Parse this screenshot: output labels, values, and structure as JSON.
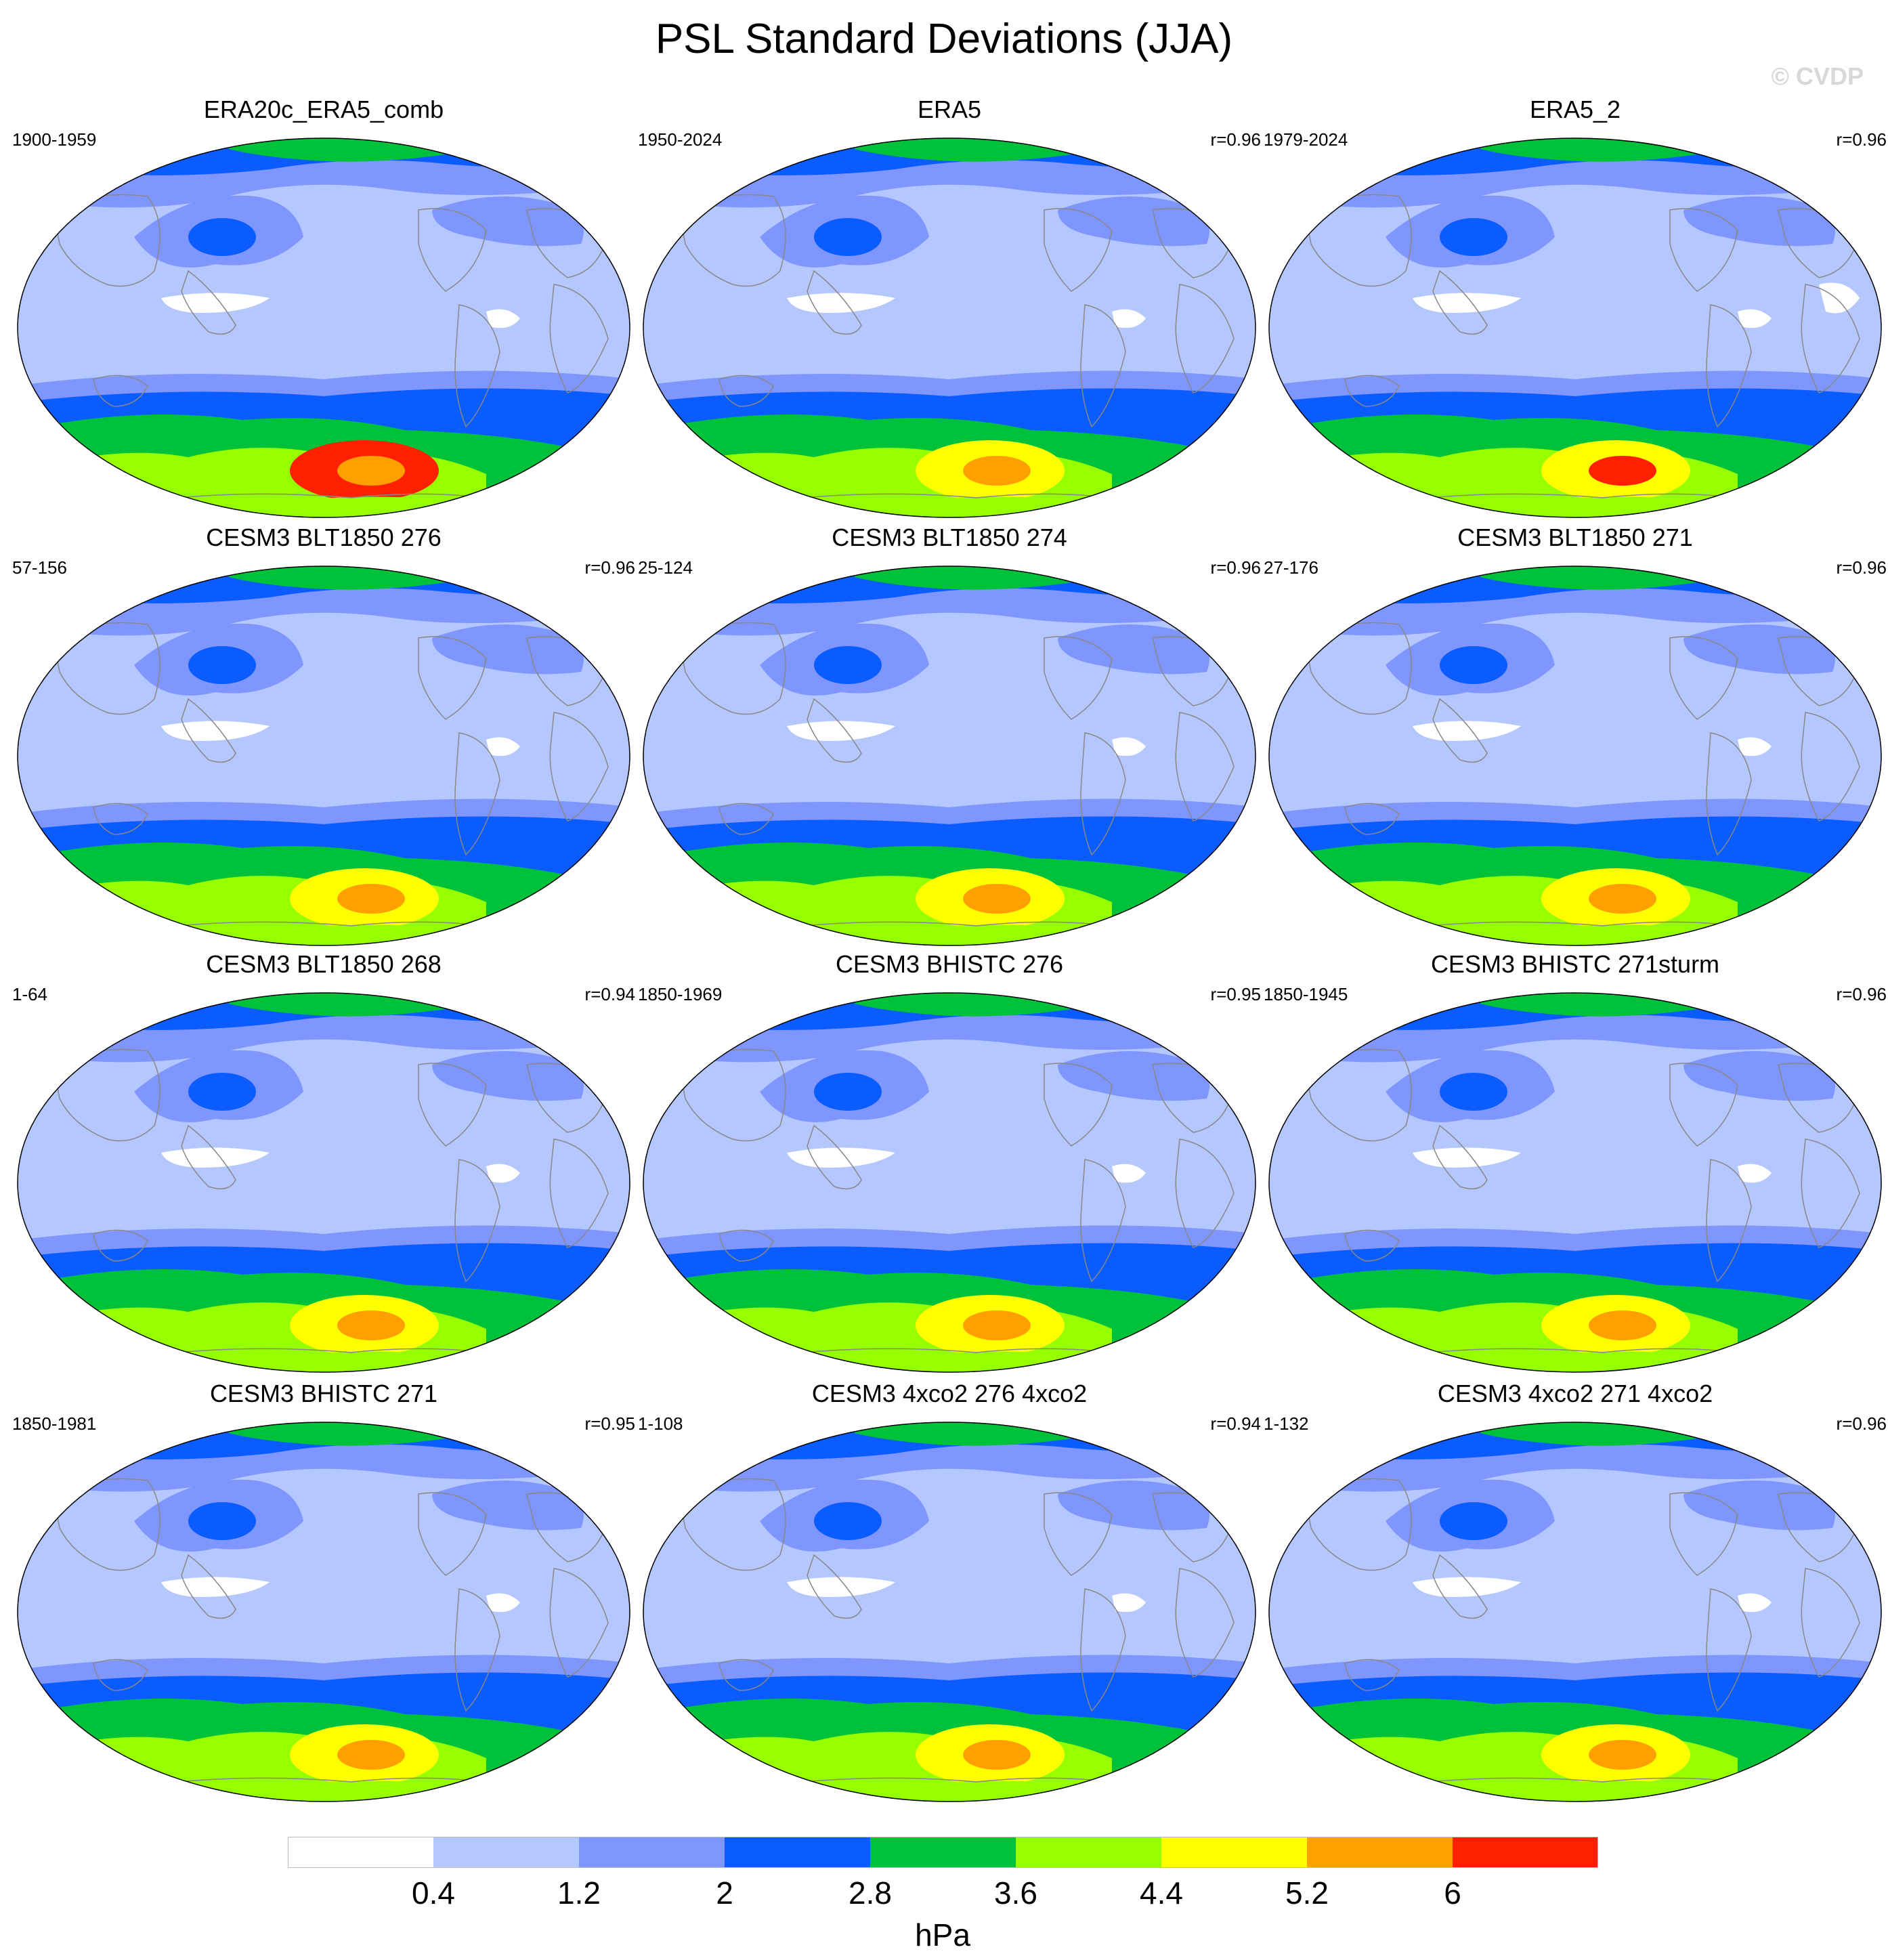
{
  "title": "PSL Standard Deviations (JJA)",
  "watermark": "© CVDP",
  "panels": [
    {
      "name": "ERA20c_ERA5_comb",
      "years": "1900-1959",
      "corr": ""
    },
    {
      "name": "ERA5",
      "years": "1950-2024",
      "corr": "r=0.96"
    },
    {
      "name": "ERA5_2",
      "years": "1979-2024",
      "corr": "r=0.96"
    },
    {
      "name": "CESM3 BLT1850 276",
      "years": "57-156",
      "corr": "r=0.96"
    },
    {
      "name": "CESM3 BLT1850 274",
      "years": "25-124",
      "corr": "r=0.96"
    },
    {
      "name": "CESM3 BLT1850 271",
      "years": "27-176",
      "corr": "r=0.96"
    },
    {
      "name": "CESM3 BLT1850 268",
      "years": "1-64",
      "corr": "r=0.94"
    },
    {
      "name": "CESM3 BHISTC 276",
      "years": "1850-1969",
      "corr": "r=0.95"
    },
    {
      "name": "CESM3 BHISTC 271sturm",
      "years": "1850-1945",
      "corr": "r=0.96"
    },
    {
      "name": "CESM3 BHISTC 271",
      "years": "1850-1981",
      "corr": "r=0.95"
    },
    {
      "name": "CESM3 4xco2 276 4xco2",
      "years": "1-108",
      "corr": "r=0.94"
    },
    {
      "name": "CESM3 4xco2 271 4xco2",
      "years": "1-132",
      "corr": "r=0.96"
    }
  ],
  "colorbar": {
    "labels": [
      "0.4",
      "1.2",
      "2",
      "2.8",
      "3.6",
      "4.4",
      "5.2",
      "6"
    ],
    "colors": [
      "#ffffff",
      "#b4c7ff",
      "#8096ff",
      "#0a5cff",
      "#00c23a",
      "#96ff00",
      "#ffff00",
      "#ffa000",
      "#ff2000"
    ],
    "units": "hPa"
  },
  "land_color": "#888888"
}
